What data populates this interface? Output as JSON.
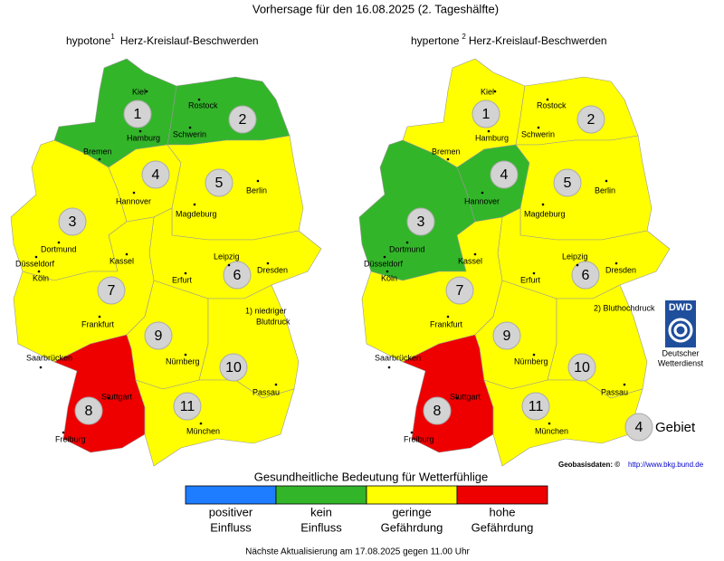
{
  "title": "Vorhersage für den 16.08.2025 (2. Tageshälfte)",
  "maps": [
    {
      "title": "hypotone",
      "superscript": "1",
      "subtitle": "Herz-Kreislauf-Beschwerden",
      "footnote": [
        "1) niedriger",
        "Blutdruck"
      ],
      "regions": [
        {
          "label": "1",
          "color": "#33b52a"
        },
        {
          "label": "2",
          "color": "#33b52a"
        },
        {
          "label": "3",
          "color": "#ffff00"
        },
        {
          "label": "4",
          "color": "#ffff00"
        },
        {
          "label": "5",
          "color": "#ffff00"
        },
        {
          "label": "6",
          "color": "#ffff00"
        },
        {
          "label": "7",
          "color": "#ffff00"
        },
        {
          "label": "8",
          "color": "#ee0000"
        },
        {
          "label": "9",
          "color": "#ffff00"
        },
        {
          "label": "10",
          "color": "#ffff00"
        },
        {
          "label": "11",
          "color": "#ffff00"
        }
      ]
    },
    {
      "title": "hypertone",
      "superscript": "2",
      "subtitle": "Herz-Kreislauf-Beschwerden",
      "footnote": [
        "2) Bluthochdruck"
      ],
      "regions": [
        {
          "label": "1",
          "color": "#ffff00"
        },
        {
          "label": "2",
          "color": "#ffff00"
        },
        {
          "label": "3",
          "color": "#33b52a"
        },
        {
          "label": "4",
          "color": "#33b52a"
        },
        {
          "label": "5",
          "color": "#ffff00"
        },
        {
          "label": "6",
          "color": "#ffff00"
        },
        {
          "label": "7",
          "color": "#ffff00"
        },
        {
          "label": "8",
          "color": "#ee0000"
        },
        {
          "label": "9",
          "color": "#ffff00"
        },
        {
          "label": "10",
          "color": "#ffff00"
        },
        {
          "label": "11",
          "color": "#ffff00"
        }
      ]
    }
  ],
  "cities": [
    "Kiel",
    "Rostock",
    "Hamburg",
    "Schwerin",
    "Bremen",
    "Hannover",
    "Berlin",
    "Magdeburg",
    "Dortmund",
    "Düsseldorf",
    "Köln",
    "Kassel",
    "Leipzig",
    "Dresden",
    "Erfurt",
    "Frankfurt",
    "Saarbrücken",
    "Nürnberg",
    "Stuttgart",
    "Passau",
    "Freiburg",
    "München"
  ],
  "logo": {
    "name": "DWD",
    "caption": [
      "Deutscher",
      "Wetterdienst"
    ]
  },
  "region_legend": {
    "symbol": "4",
    "label": "Gebiet"
  },
  "source": {
    "label": "Geobasisdaten: ©",
    "link": "http://www.bkg.bund.de"
  },
  "scale": {
    "title": "Gesundheitliche Bedeutung für Wetterfühlige",
    "items": [
      {
        "color": "#1e7cff",
        "label": [
          "positiver",
          "Einfluss"
        ]
      },
      {
        "color": "#33b52a",
        "label": [
          "kein",
          "Einfluss"
        ]
      },
      {
        "color": "#ffff00",
        "label": [
          "geringe",
          "Gefährdung"
        ]
      },
      {
        "color": "#ee0000",
        "label": [
          "hohe",
          "Gefährdung"
        ]
      }
    ]
  },
  "footer": "Nächste Aktualisierung am 17.08.2025 gegen 11.00 Uhr"
}
